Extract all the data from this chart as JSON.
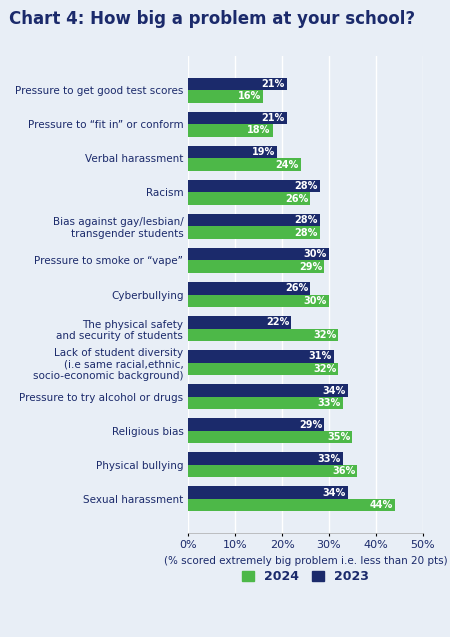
{
  "title": "Chart 4: How big a problem at your school?",
  "xlabel": "(% scored extremely big problem i.e. less than 20 pts)",
  "categories": [
    "Sexual harassment",
    "Physical bullying",
    "Religious bias",
    "Pressure to try alcohol or drugs",
    "Lack of student diversity\n(i.e same racial,ethnic,\nsocio-economic background)",
    "The physical safety\nand security of students",
    "Cyberbullying",
    "Pressure to smoke or “vape”",
    "Bias against gay/lesbian/\ntransgender students",
    "Racism",
    "Verbal harassment",
    "Pressure to “fit in” or conform",
    "Pressure to get good test scores"
  ],
  "values_2024": [
    44,
    36,
    35,
    33,
    32,
    32,
    30,
    29,
    28,
    26,
    24,
    18,
    16
  ],
  "values_2023": [
    34,
    33,
    29,
    34,
    31,
    22,
    26,
    30,
    28,
    28,
    19,
    21,
    21
  ],
  "color_2024": "#4db848",
  "color_2023": "#1b2a6b",
  "background_color": "#e8eef6",
  "bar_height": 0.36,
  "xlim": [
    0,
    50
  ],
  "xticks": [
    0,
    10,
    20,
    30,
    40,
    50
  ],
  "xtick_labels": [
    "0%",
    "10%",
    "20%",
    "30%",
    "40%",
    "50%"
  ],
  "legend_2024": "2024",
  "legend_2023": "2023",
  "title_fontsize": 12,
  "label_fontsize": 7.5,
  "tick_fontsize": 8,
  "bar_label_fontsize": 7
}
